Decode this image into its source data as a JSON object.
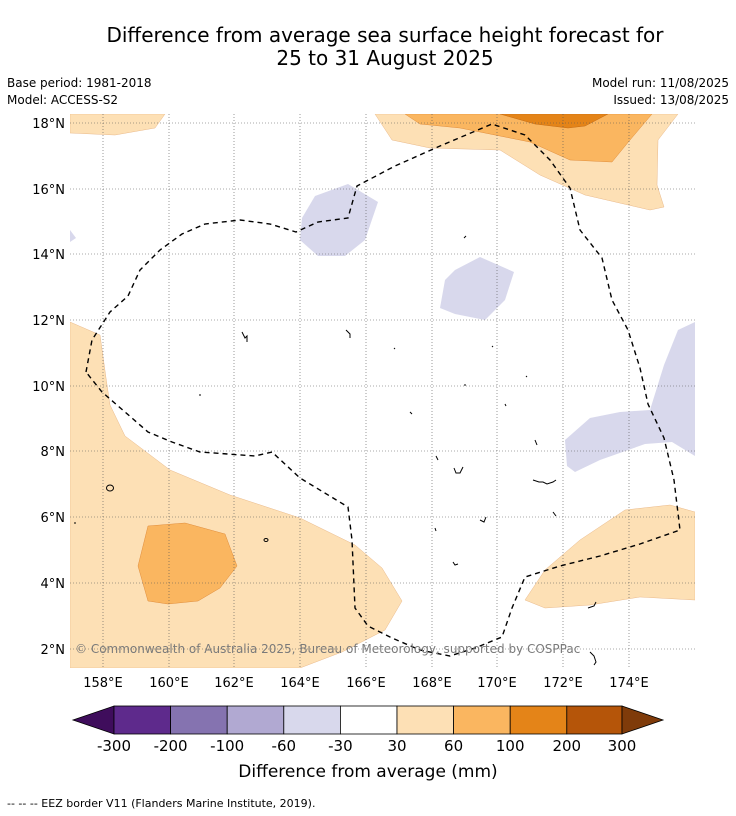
{
  "header": {
    "title_line1": "Difference from average sea surface height forecast for",
    "title_line2": "25 to 31 August 2025",
    "base_period": "Base period: 1981-2018",
    "model": "Model: ACCESS-S2",
    "model_run": "Model run: 11/08/2025",
    "issued": "Issued: 13/08/2025"
  },
  "map": {
    "copyright": "© Commonwealth of Australia 2025, Bureau of Meteorology, supported by COSPPac",
    "lat_labels": [
      "18°N",
      "16°N",
      "14°N",
      "12°N",
      "10°N",
      "8°N",
      "6°N",
      "4°N",
      "2°N"
    ],
    "lon_labels": [
      "158°E",
      "160°E",
      "162°E",
      "164°E",
      "166°E",
      "168°E",
      "170°E",
      "172°E",
      "174°E"
    ]
  },
  "colorbar": {
    "tick_labels": [
      "-300",
      "-200",
      "-100",
      "-60",
      "-30",
      "30",
      "60",
      "100",
      "200",
      "300"
    ],
    "colors": [
      "#3f0d5c",
      "#5e2a8c",
      "#8573b0",
      "#b1a9d2",
      "#d8d8ec",
      "#ffffff",
      "#fde0b5",
      "#fab660",
      "#e48418",
      "#b55509",
      "#7f3b0a"
    ],
    "label": "Difference from average (mm)"
  },
  "footer": {
    "legend_note": "--  --  -- EEZ border V11 (Flanders Marine Institute, 2019)."
  }
}
